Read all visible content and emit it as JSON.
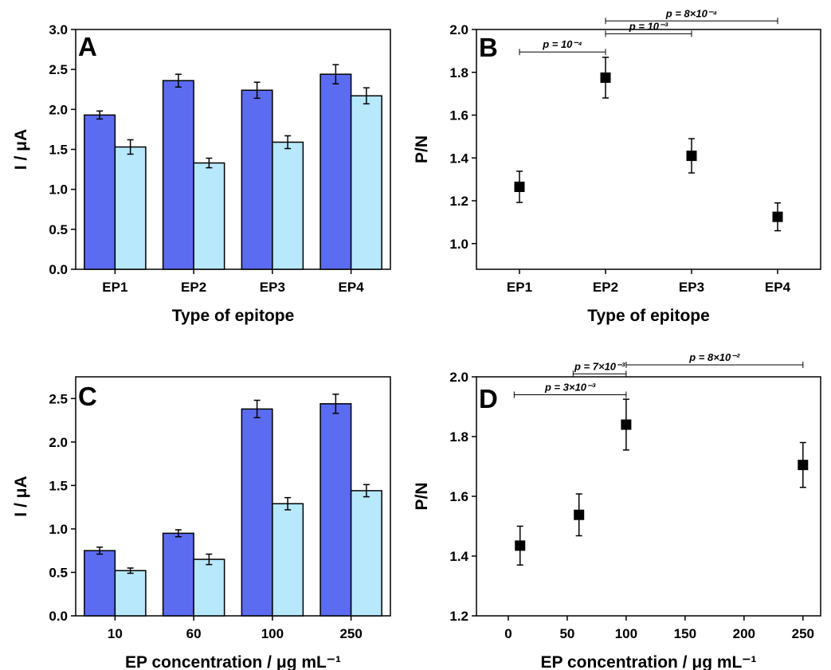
{
  "chart_data": [
    {
      "panel": "A",
      "type": "bar",
      "categories": [
        "EP1",
        "EP2",
        "EP3",
        "EP4"
      ],
      "series": [
        {
          "values": [
            1.93,
            2.36,
            2.24,
            2.44
          ],
          "errors": [
            0.05,
            0.08,
            0.1,
            0.12
          ]
        },
        {
          "values": [
            1.53,
            1.33,
            1.59,
            2.17
          ],
          "errors": [
            0.09,
            0.06,
            0.08,
            0.1
          ]
        }
      ],
      "xlabel": "Type of epitope",
      "ylabel": "I / μA",
      "ylim": [
        0,
        3.0
      ],
      "yticks": [
        "0.0",
        "0.5",
        "1.0",
        "1.5",
        "2.0",
        "2.5",
        "3.0"
      ],
      "colors": [
        "#5b6cf0",
        "#b7e8fb"
      ]
    },
    {
      "panel": "B",
      "type": "scatter",
      "categories": [
        "EP1",
        "EP2",
        "EP3",
        "EP4"
      ],
      "values": [
        1.265,
        1.775,
        1.41,
        1.125
      ],
      "errors": [
        0.073,
        0.095,
        0.08,
        0.065
      ],
      "xlabel": "Type of epitope",
      "ylabel": "P/N",
      "ylim": [
        0.88,
        2.0
      ],
      "yticks": [
        "1.0",
        "1.2",
        "1.4",
        "1.6",
        "1.8",
        "2.0"
      ],
      "annotations": [
        {
          "text": "p = 10⁻⁴",
          "from": "EP1",
          "to": "EP2",
          "y": 1.895
        },
        {
          "text": "p = 10⁻³",
          "from": "EP2",
          "to": "EP3",
          "y": 1.98
        },
        {
          "text": "p = 8×10⁻⁴",
          "from": "EP2",
          "to": "EP4",
          "y": 2.04
        }
      ],
      "marker_color": "#000000"
    },
    {
      "panel": "C",
      "type": "bar",
      "categories": [
        "10",
        "60",
        "100",
        "250"
      ],
      "series": [
        {
          "values": [
            0.75,
            0.95,
            2.38,
            2.44
          ],
          "errors": [
            0.04,
            0.04,
            0.1,
            0.11
          ]
        },
        {
          "values": [
            0.52,
            0.65,
            1.29,
            1.44
          ],
          "errors": [
            0.03,
            0.06,
            0.07,
            0.07
          ]
        }
      ],
      "xlabel": "EP concentration / μg mL⁻¹",
      "ylabel": "I / μA",
      "ylim": [
        0,
        2.75
      ],
      "yticks": [
        "0.0",
        "0.5",
        "1.0",
        "1.5",
        "2.0",
        "2.5"
      ],
      "colors": [
        "#5b6cf0",
        "#b7e8fb"
      ]
    },
    {
      "panel": "D",
      "type": "scatter",
      "x": [
        10,
        60,
        100,
        250
      ],
      "values": [
        1.435,
        1.538,
        1.84,
        1.705
      ],
      "errors": [
        0.065,
        0.07,
        0.085,
        0.075
      ],
      "xlabel": "EP concentration / μg mL⁻¹",
      "ylabel": "P/N",
      "xlim": [
        -27,
        265
      ],
      "ylim": [
        1.2,
        2.0
      ],
      "xticks": [
        "0",
        "50",
        "100",
        "150",
        "200",
        "250"
      ],
      "yticks": [
        "1.2",
        "1.4",
        "1.6",
        "1.8",
        "2.0"
      ],
      "annotations": [
        {
          "text": "p = 3×10⁻³",
          "from": 5,
          "to": 100,
          "y": 1.94
        },
        {
          "text": "p = 7×10⁻³",
          "from": 55,
          "to": 100,
          "y": 2.01
        },
        {
          "text": "p = 8×10⁻²",
          "from": 100,
          "to": 250,
          "y": 2.04
        }
      ],
      "marker_color": "#000000"
    }
  ]
}
